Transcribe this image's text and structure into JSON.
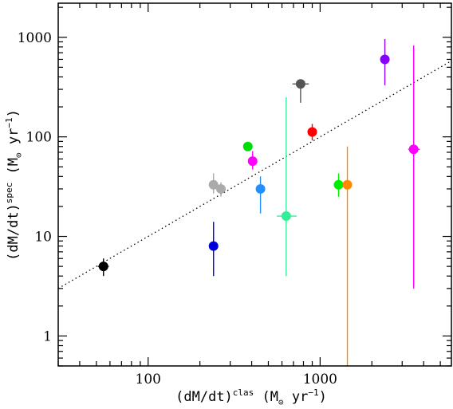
{
  "chart_data": {
    "type": "scatter",
    "log_x": true,
    "log_y": true,
    "xlim": [
      30,
      5800
    ],
    "ylim": [
      0.5,
      2200
    ],
    "xlabel": {
      "prefix": "(dM/dt)",
      "sup": "clas",
      "units_open": " (M",
      "units_sub": "⊙",
      "units_mid": " yr",
      "units_sup": "−1",
      "units_close": ")"
    },
    "ylabel": {
      "prefix": "(dM/dt)",
      "sup": "spec",
      "units_open": " (M",
      "units_sub": "⊙",
      "units_mid": " yr",
      "units_sup": "−1",
      "units_close": ")"
    },
    "x_ticks": [
      {
        "value": 100,
        "label": "100"
      },
      {
        "value": 1000,
        "label": "1000"
      }
    ],
    "y_ticks": [
      {
        "value": 1,
        "label": "1"
      },
      {
        "value": 10,
        "label": "10"
      },
      {
        "value": 100,
        "label": "100"
      },
      {
        "value": 1000,
        "label": "1000"
      }
    ],
    "reference_line": {
      "style": "dotted",
      "color": "#000000",
      "x": [
        30,
        5800
      ],
      "y": [
        3,
        580
      ]
    },
    "points": [
      {
        "x": 55,
        "y": 5,
        "xerr": [
          51,
          59
        ],
        "yerr": [
          4,
          6
        ],
        "color": "#000000"
      },
      {
        "x": 240,
        "y": 8,
        "xerr": null,
        "yerr": [
          4,
          14
        ],
        "color": "#0000dd"
      },
      {
        "x": 240,
        "y": 33,
        "xerr": null,
        "yerr": [
          27,
          43
        ],
        "color": "#aaaaaa"
      },
      {
        "x": 265,
        "y": 30,
        "xerr": null,
        "yerr": [
          25,
          35
        ],
        "color": "#aaaaaa"
      },
      {
        "x": 380,
        "y": 80,
        "xerr": null,
        "yerr": null,
        "color": "#00dd00"
      },
      {
        "x": 405,
        "y": 57,
        "xerr": null,
        "yerr": [
          47,
          72
        ],
        "color": "#ff00ff"
      },
      {
        "x": 450,
        "y": 30,
        "xerr": null,
        "yerr": [
          17,
          40
        ],
        "color": "#1e90ff"
      },
      {
        "x": 635,
        "y": 16,
        "xerr": [
          560,
          730
        ],
        "yerr": [
          4,
          250
        ],
        "color": "#33ee99"
      },
      {
        "x": 770,
        "y": 340,
        "xerr": [
          690,
          860
        ],
        "yerr": [
          220,
          360
        ],
        "color": "#555555"
      },
      {
        "x": 900,
        "y": 112,
        "xerr": null,
        "yerr": [
          92,
          135
        ],
        "color": "#ff0000"
      },
      {
        "x": 1280,
        "y": 33,
        "xerr": null,
        "yerr": [
          25,
          43
        ],
        "color": "#00ee00"
      },
      {
        "x": 1440,
        "y": 33,
        "xerr": null,
        "yerr": [
          0.5,
          80
        ],
        "color": "#ff8800"
      },
      {
        "x": 2380,
        "y": 600,
        "xerr": [
          2280,
          2480
        ],
        "yerr": [
          330,
          960
        ],
        "color": "#8800ff"
      },
      {
        "x": 3500,
        "y": 75,
        "xerr": [
          3250,
          3800
        ],
        "yerr": [
          3,
          830
        ],
        "color": "#ff00ff"
      }
    ]
  }
}
